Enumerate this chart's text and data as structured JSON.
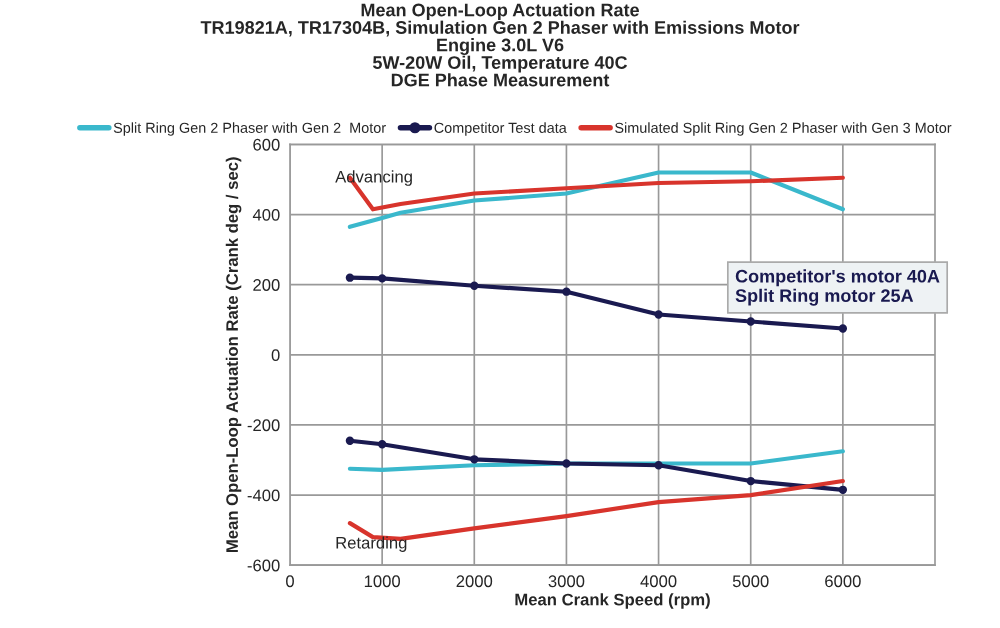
{
  "chart_data": {
    "type": "line",
    "title": "Mean Open-Loop Actuation Rate\nTR19821A, TR17304B, Simulation Gen 2 Phaser with Emissions Motor\nEngine 3.0L V6\n5W-20W Oil, Temperature 40C\nDGE Phase Measurement",
    "xlabel": "Mean Crank Speed (rpm)",
    "ylabel": "Mean Open-Loop Actuation Rate (Crank deg / sec)",
    "xlim": [
      0,
      7000
    ],
    "xticks": [
      0,
      1000,
      2000,
      3000,
      4000,
      5000,
      6000
    ],
    "ylim": [
      -600,
      600
    ],
    "yticks": [
      -600,
      -400,
      -200,
      0,
      200,
      400,
      600
    ],
    "grid": true,
    "legend": "top",
    "series": [
      {
        "name": "Split Ring Gen 2 Phaser with Gen 2  Motor",
        "color": "#3ab8cc",
        "marker": "none",
        "x": [
          650,
          1000,
          1200,
          2000,
          3000,
          4000,
          5000,
          6000
        ],
        "values": [
          365,
          390,
          405,
          440,
          460,
          520,
          520,
          415
        ]
      },
      {
        "name": "Competitor Test data",
        "color": "#1a1a50",
        "marker": "circle",
        "x": [
          650,
          1000,
          2000,
          3000,
          4000,
          5000,
          6000
        ],
        "values": [
          220,
          218,
          197,
          180,
          115,
          95,
          75
        ]
      },
      {
        "name": "Simulated Split Ring Gen 2 Phaser with Gen 3 Motor",
        "color": "#d8342c",
        "marker": "none",
        "x": [
          650,
          900,
          1200,
          2000,
          3000,
          4000,
          5000,
          6000
        ],
        "values": [
          505,
          415,
          430,
          460,
          475,
          490,
          495,
          505
        ]
      },
      {
        "color": "#3ab8cc",
        "marker": "none",
        "x": [
          650,
          1000,
          2000,
          3000,
          4000,
          5000,
          6000
        ],
        "values": [
          -325,
          -328,
          -315,
          -310,
          -310,
          -310,
          -275
        ]
      },
      {
        "color": "#1a1a50",
        "marker": "circle",
        "x": [
          650,
          1000,
          2000,
          3000,
          4000,
          5000,
          6000
        ],
        "values": [
          -245,
          -255,
          -298,
          -310,
          -315,
          -360,
          -385
        ]
      },
      {
        "color": "#d8342c",
        "marker": "none",
        "x": [
          650,
          900,
          1200,
          2000,
          3000,
          4000,
          5000,
          6000
        ],
        "values": [
          -480,
          -520,
          -525,
          -495,
          -460,
          -420,
          -400,
          -360
        ]
      }
    ],
    "annotations": [
      "Advancing",
      "Retarding",
      "Competitor's motor 40A\nSplit Ring motor 25A"
    ]
  }
}
